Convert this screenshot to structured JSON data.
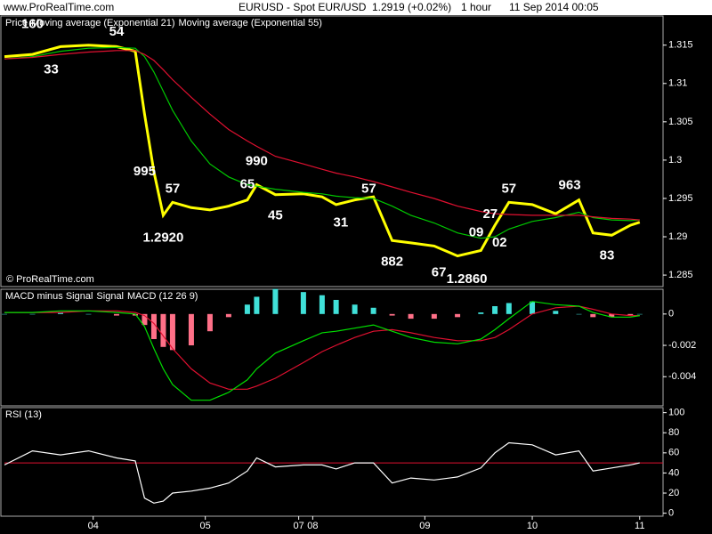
{
  "header": {
    "site": "www.ProRealTime.com",
    "symbol": "EURUSD - Spot EUR/USD",
    "price": "1.2919 (+0.02%)",
    "period": "1 hour",
    "datetime": "11 Sep 2014 00:05"
  },
  "chart_data": [
    {
      "type": "line",
      "watermark": "© ProRealTime.com",
      "x": [
        0,
        6,
        12,
        18,
        24,
        28,
        30,
        32,
        34,
        36,
        40,
        44,
        48,
        52,
        54,
        58,
        64,
        68,
        71,
        75,
        79,
        83,
        87,
        92,
        97,
        102,
        105,
        108,
        113,
        118,
        123,
        126,
        130,
        134,
        136
      ],
      "xlim": [
        0,
        141
      ],
      "ylim": [
        1.2835,
        1.3188
      ],
      "yticks": [
        1.315,
        1.31,
        1.305,
        1.3,
        1.295,
        1.29,
        1.285
      ],
      "series": [
        {
          "name": "Price",
          "color": "#ffff00",
          "values": [
            1.3135,
            1.3138,
            1.3148,
            1.315,
            1.3148,
            1.3142,
            1.306,
            1.2985,
            1.2928,
            1.2945,
            1.2938,
            1.2935,
            1.294,
            1.2948,
            1.2968,
            1.2955,
            1.2956,
            1.2952,
            1.2942,
            1.2948,
            1.2952,
            1.2895,
            1.2892,
            1.2888,
            1.2875,
            1.2882,
            1.2915,
            1.2945,
            1.2942,
            1.293,
            1.2948,
            1.2905,
            1.2902,
            1.2915,
            1.2919
          ]
        },
        {
          "name": "Moving average (Exponential 21)",
          "color": "#00c800",
          "values": [
            1.3132,
            1.3135,
            1.3142,
            1.3146,
            1.3147,
            1.3146,
            1.3135,
            1.3115,
            1.309,
            1.3065,
            1.3025,
            1.2995,
            1.2978,
            1.2968,
            1.2966,
            1.2962,
            1.2958,
            1.2956,
            1.2953,
            1.2951,
            1.295,
            1.294,
            1.2928,
            1.2918,
            1.2905,
            1.2898,
            1.29,
            1.291,
            1.292,
            1.2925,
            1.2932,
            1.2925,
            1.2922,
            1.2921,
            1.2922
          ]
        },
        {
          "name": "Moving average (Exponential 55)",
          "color": "#e01030",
          "values": [
            1.3132,
            1.3134,
            1.3138,
            1.3141,
            1.3143,
            1.3143,
            1.3138,
            1.313,
            1.3118,
            1.3105,
            1.3082,
            1.306,
            1.304,
            1.3025,
            1.3018,
            1.3005,
            1.2995,
            1.2988,
            1.2983,
            1.2978,
            1.2972,
            1.2965,
            1.2958,
            1.295,
            1.294,
            1.2933,
            1.293,
            1.2929,
            1.2928,
            1.2928,
            1.2928,
            1.2926,
            1.2924,
            1.2923,
            1.2922
          ]
        }
      ],
      "annotations": [
        {
          "text": "160",
          "x": 6,
          "y": 1.3177
        },
        {
          "text": "33",
          "x": 10,
          "y": 1.3118
        },
        {
          "text": "54",
          "x": 24,
          "y": 1.3167
        },
        {
          "text": "995",
          "x": 30,
          "y": 1.2985
        },
        {
          "text": "57",
          "x": 36,
          "y": 1.2962
        },
        {
          "text": "1.2920",
          "x": 34,
          "y": 1.2898
        },
        {
          "text": "990",
          "x": 54,
          "y": 1.2998
        },
        {
          "text": "65",
          "x": 52,
          "y": 1.2968
        },
        {
          "text": "45",
          "x": 58,
          "y": 1.2927
        },
        {
          "text": "31",
          "x": 72,
          "y": 1.2918
        },
        {
          "text": "57",
          "x": 78,
          "y": 1.2962
        },
        {
          "text": "882",
          "x": 83,
          "y": 1.2867
        },
        {
          "text": "67",
          "x": 93,
          "y": 1.2853
        },
        {
          "text": "1.2860",
          "x": 99,
          "y": 1.2844
        },
        {
          "text": "27",
          "x": 104,
          "y": 1.2929
        },
        {
          "text": "09",
          "x": 101,
          "y": 1.2905
        },
        {
          "text": "02",
          "x": 106,
          "y": 1.2892
        },
        {
          "text": "57",
          "x": 108,
          "y": 1.2962
        },
        {
          "text": "963",
          "x": 121,
          "y": 1.2967
        },
        {
          "text": "83",
          "x": 129,
          "y": 1.2875
        }
      ]
    },
    {
      "type": "combo",
      "x": [
        0,
        6,
        12,
        18,
        24,
        28,
        30,
        32,
        34,
        36,
        40,
        44,
        48,
        52,
        54,
        58,
        64,
        68,
        71,
        75,
        79,
        83,
        87,
        92,
        97,
        102,
        105,
        108,
        113,
        118,
        123,
        126,
        130,
        134,
        136
      ],
      "xlim": [
        0,
        141
      ],
      "ylim": [
        -0.00586,
        0.00158
      ],
      "yticks": [
        0,
        -0.002,
        -0.004
      ],
      "series": [
        {
          "name": "MACD minus Signal",
          "type": "bar",
          "color": "#40e0d8",
          "negative_color": "#ff7088",
          "values": [
            0,
            0,
            0.0001,
            0,
            -0.0001,
            -0.0001,
            -0.0007,
            -0.0016,
            -0.0021,
            -0.0023,
            -0.002,
            -0.0011,
            -0.0002,
            0.0006,
            0.0011,
            0.0016,
            0.0014,
            0.0012,
            0.0009,
            0.0006,
            0.0004,
            -0.0001,
            -0.0003,
            -0.0003,
            -0.0002,
            0.0001,
            0.0005,
            0.0007,
            0.0008,
            0.0002,
            0,
            -0.0002,
            -0.0002,
            -0.0001,
            0
          ]
        },
        {
          "name": "Signal",
          "type": "line",
          "color": "#e01030",
          "values": [
            0.0001,
            0.0001,
            0.0001,
            0.0002,
            0.0002,
            0.0001,
            -0.0001,
            -0.0006,
            -0.0014,
            -0.0022,
            -0.0035,
            -0.0044,
            -0.0048,
            -0.0048,
            -0.0046,
            -0.0041,
            -0.0031,
            -0.0024,
            -0.002,
            -0.0015,
            -0.0011,
            -0.001,
            -0.0012,
            -0.0015,
            -0.0017,
            -0.0017,
            -0.0015,
            -0.001,
            0,
            0.0004,
            0.0005,
            0.0003,
            0,
            -0.0001,
            -0.0001
          ]
        },
        {
          "name": "MACD (12 26 9)",
          "type": "line",
          "color": "#00e000",
          "values": [
            0.0001,
            0.0001,
            0.0002,
            0.0002,
            0.0001,
            0,
            -0.0008,
            -0.0022,
            -0.0035,
            -0.0045,
            -0.0055,
            -0.0055,
            -0.005,
            -0.0042,
            -0.0035,
            -0.0025,
            -0.0017,
            -0.0012,
            -0.0011,
            -0.0009,
            -0.0007,
            -0.0011,
            -0.0015,
            -0.0018,
            -0.0019,
            -0.0016,
            -0.001,
            -0.0003,
            0.0008,
            0.0006,
            0.0005,
            0.0001,
            -0.0002,
            -0.0002,
            -0.0001
          ]
        }
      ]
    },
    {
      "type": "line",
      "x": [
        0,
        6,
        12,
        18,
        24,
        28,
        30,
        32,
        34,
        36,
        40,
        44,
        48,
        52,
        54,
        58,
        64,
        68,
        71,
        75,
        79,
        83,
        87,
        92,
        97,
        102,
        105,
        108,
        113,
        118,
        123,
        126,
        130,
        134,
        136
      ],
      "xlim": [
        0,
        141
      ],
      "ylim": [
        -3,
        105
      ],
      "yticks": [
        100,
        80,
        60,
        40,
        20,
        0
      ],
      "level": 50,
      "level_color": "#e01030",
      "xticks": [
        {
          "value": 19,
          "label": "04"
        },
        {
          "value": 43,
          "label": "05"
        },
        {
          "value": 63,
          "label": "07"
        },
        {
          "value": 66,
          "label": "08"
        },
        {
          "value": 90,
          "label": "09"
        },
        {
          "value": 113,
          "label": "10"
        },
        {
          "value": 136,
          "label": "11"
        }
      ],
      "series": [
        {
          "name": "RSI (13)",
          "color": "#ffffff",
          "values": [
            48,
            62,
            58,
            62,
            55,
            52,
            15,
            10,
            12,
            20,
            22,
            25,
            30,
            42,
            55,
            46,
            48,
            48,
            44,
            50,
            50,
            30,
            35,
            33,
            36,
            45,
            60,
            70,
            68,
            58,
            62,
            42,
            45,
            48,
            50
          ]
        }
      ]
    }
  ]
}
